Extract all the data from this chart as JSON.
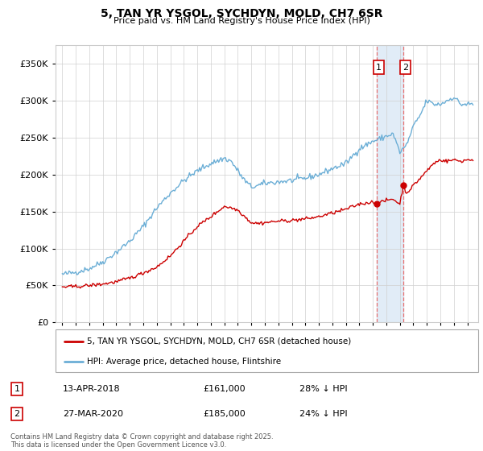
{
  "title": "5, TAN YR YSGOL, SYCHDYN, MOLD, CH7 6SR",
  "subtitle": "Price paid vs. HM Land Registry's House Price Index (HPI)",
  "legend_line1": "5, TAN YR YSGOL, SYCHDYN, MOLD, CH7 6SR (detached house)",
  "legend_line2": "HPI: Average price, detached house, Flintshire",
  "transaction1_date": "13-APR-2018",
  "transaction1_price": "£161,000",
  "transaction1_hpi": "28% ↓ HPI",
  "transaction2_date": "27-MAR-2020",
  "transaction2_price": "£185,000",
  "transaction2_hpi": "24% ↓ HPI",
  "footer": "Contains HM Land Registry data © Crown copyright and database right 2025.\nThis data is licensed under the Open Government Licence v3.0.",
  "hpi_color": "#6baed6",
  "price_color": "#cc0000",
  "shade_color": "#dae8f5",
  "marker1_x": 2018.28,
  "marker2_x": 2020.24,
  "ylim_min": 0,
  "ylim_max": 375000,
  "xlim_min": 1994.5,
  "xlim_max": 2025.8
}
